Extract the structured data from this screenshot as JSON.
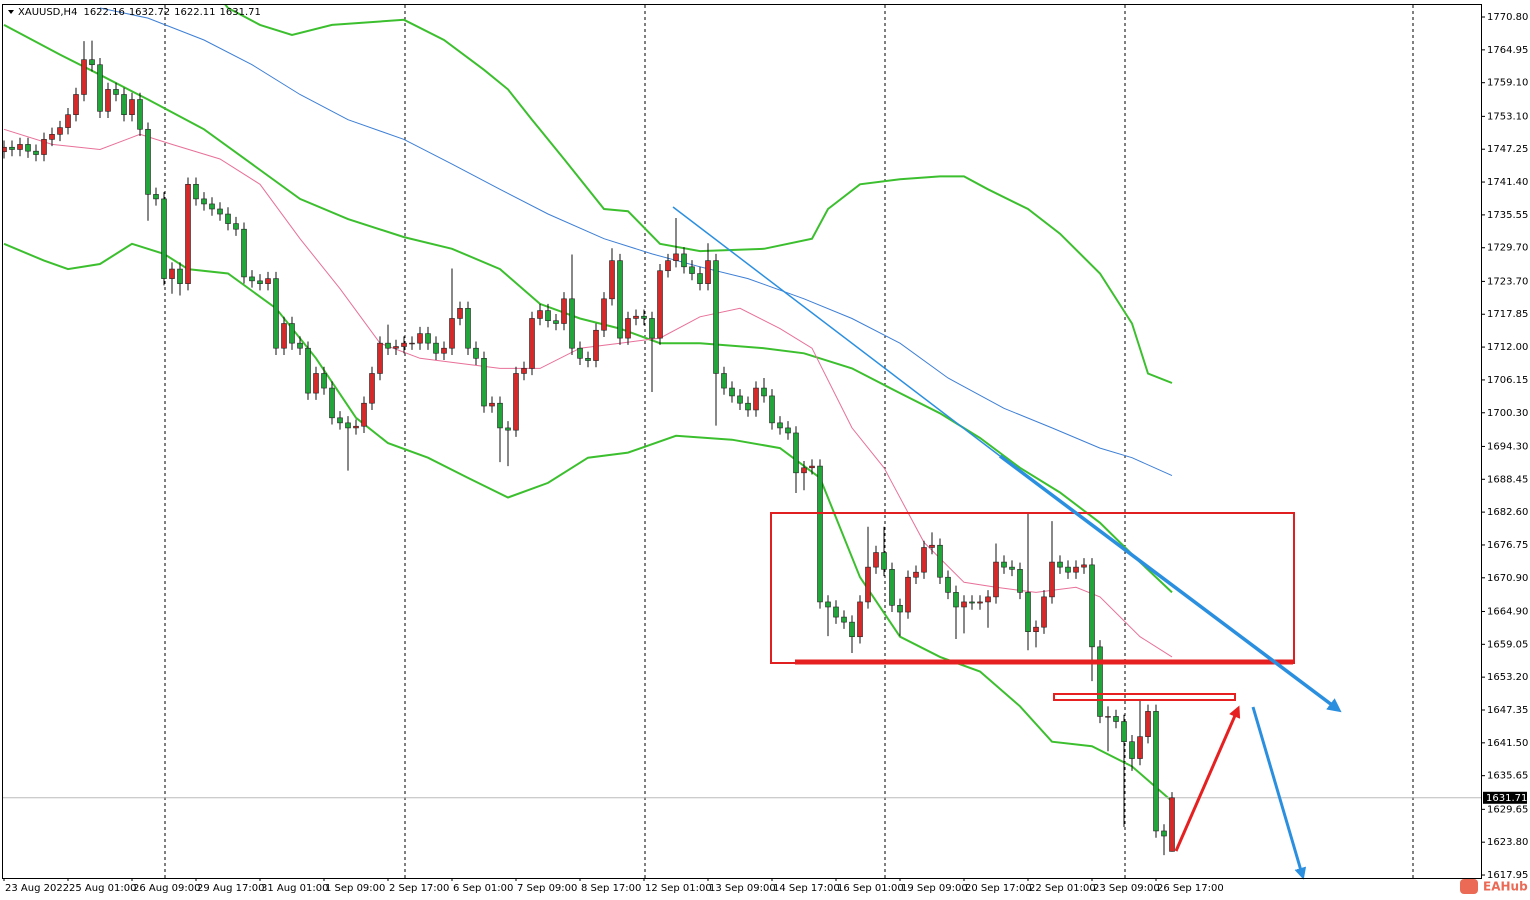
{
  "chart_data": {
    "type": "candlestick",
    "symbol": "XAUUSD,H4",
    "watermark": "EAHub",
    "categories": [
      "23 Aug 2022",
      null,
      null,
      null,
      null,
      null,
      null,
      null,
      "25 Aug 01:00",
      null,
      null,
      null,
      null,
      null,
      null,
      null,
      "26 Aug 09:00",
      null,
      null,
      null,
      null,
      null,
      null,
      null,
      "29 Aug 17:00",
      null,
      null,
      null,
      null,
      null,
      null,
      null,
      "31 Aug 01:00",
      null,
      null,
      null,
      null,
      null,
      null,
      null,
      "1 Sep 09:00",
      null,
      null,
      null,
      null,
      null,
      null,
      null,
      "2 Sep 17:00",
      null,
      null,
      null,
      null,
      null,
      null,
      null,
      "6 Sep 01:00",
      null,
      null,
      null,
      null,
      null,
      null,
      null,
      "7 Sep 09:00",
      null,
      null,
      null,
      null,
      null,
      null,
      null,
      "8 Sep 17:00",
      null,
      null,
      null,
      null,
      null,
      null,
      null,
      "12 Sep 01:00",
      null,
      null,
      null,
      null,
      null,
      null,
      null,
      "13 Sep 09:00",
      null,
      null,
      null,
      null,
      null,
      null,
      null,
      "14 Sep 17:00",
      null,
      null,
      null,
      null,
      null,
      null,
      null,
      "16 Sep 01:00",
      null,
      null,
      null,
      null,
      null,
      null,
      null,
      "19 Sep 09:00",
      null,
      null,
      null,
      null,
      null,
      null,
      null,
      "20 Sep 17:00",
      null,
      null,
      null,
      null,
      null,
      null,
      null,
      "22 Sep 01:00",
      null,
      null,
      null,
      null,
      null,
      null,
      null,
      "23 Sep 09:00",
      null,
      null,
      null,
      null,
      null,
      null,
      null,
      "26 Sep 17:00",
      null,
      null
    ],
    "open": [
      1746.8,
      1747.6,
      1747.2,
      1748.1,
      1746.9,
      1746.3,
      1749.0,
      1749.9,
      1751.1,
      1753.4,
      1757.0,
      1763.2,
      1762.3,
      1754.0,
      1757.9,
      1757.0,
      1753.4,
      1756.1,
      1750.8,
      1739.2,
      1738.4,
      1724.2,
      1725.9,
      1723.3,
      1741.0,
      1738.4,
      1737.5,
      1736.6,
      1735.7,
      1734.0,
      1733.0,
      1724.5,
      1723.8,
      1723.3,
      1724.2,
      1711.8,
      1716.2,
      1712.7,
      1711.8,
      1703.8,
      1707.3,
      1704.7,
      1699.4,
      1698.5,
      1697.6,
      1697.9,
      1702.0,
      1707.3,
      1712.7,
      1711.8,
      1712.1,
      1712.7,
      1712.7,
      1714.4,
      1712.7,
      1710.9,
      1711.8,
      1717.1,
      1718.9,
      1711.8,
      1710.0,
      1701.5,
      1702.0,
      1697.6,
      1697.2,
      1707.3,
      1708.2,
      1717.1,
      1718.5,
      1716.7,
      1716.2,
      1720.6,
      1711.8,
      1710.0,
      1709.6,
      1715.0,
      1720.6,
      1727.4,
      1713.6,
      1717.1,
      1717.5,
      1717.1,
      1713.6,
      1725.6,
      1727.4,
      1728.6,
      1726.3,
      1725.1,
      1723.3,
      1727.4,
      1707.3,
      1704.7,
      1703.3,
      1702.0,
      1700.8,
      1704.7,
      1703.3,
      1698.5,
      1697.6,
      1696.7,
      1689.6,
      1690.5,
      1690.8,
      1666.6,
      1665.7,
      1663.9,
      1663.0,
      1660.4,
      1666.6,
      1672.8,
      1675.4,
      1672.4,
      1666.0,
      1664.8,
      1671.0,
      1671.9,
      1676.3,
      1676.7,
      1671.0,
      1668.3,
      1665.7,
      1666.6,
      1666.4,
      1666.6,
      1667.5,
      1673.7,
      1672.8,
      1672.4,
      1668.3,
      1661.3,
      1662.1,
      1667.5,
      1673.7,
      1672.8,
      1671.9,
      1672.8,
      1673.2,
      1658.6,
      1646.2,
      1646.2,
      1645.3,
      1641.7,
      1638.7,
      1642.6,
      1647.1,
      1625.8,
      1622.16
    ],
    "high": [
      1748.8,
      1748.8,
      1749.3,
      1749.3,
      1748.1,
      1750.2,
      1751.1,
      1752.3,
      1754.6,
      1758.2,
      1766.5,
      1766.6,
      1763.5,
      1759.1,
      1759.1,
      1758.2,
      1757.3,
      1757.3,
      1752.0,
      1740.4,
      1739.6,
      1727.1,
      1727.1,
      1742.2,
      1742.2,
      1739.6,
      1738.7,
      1737.8,
      1736.9,
      1735.2,
      1734.2,
      1725.7,
      1725.0,
      1725.4,
      1725.4,
      1717.4,
      1717.4,
      1713.9,
      1713.0,
      1708.5,
      1708.5,
      1705.9,
      1700.6,
      1699.7,
      1699.1,
      1703.2,
      1708.5,
      1713.9,
      1716.0,
      1713.3,
      1713.9,
      1713.9,
      1715.6,
      1715.6,
      1713.9,
      1713.0,
      1726.0,
      1720.1,
      1720.1,
      1713.0,
      1711.2,
      1703.2,
      1703.2,
      1698.8,
      1708.5,
      1709.4,
      1718.3,
      1719.7,
      1719.7,
      1717.9,
      1721.8,
      1728.5,
      1713.0,
      1711.2,
      1716.2,
      1721.8,
      1729.6,
      1728.6,
      1718.3,
      1718.7,
      1718.7,
      1718.3,
      1726.8,
      1728.6,
      1735.0,
      1729.8,
      1727.5,
      1726.3,
      1730.5,
      1728.6,
      1708.5,
      1705.9,
      1704.5,
      1703.2,
      1705.9,
      1706.5,
      1704.5,
      1699.7,
      1698.8,
      1697.9,
      1691.7,
      1692.0,
      1692.0,
      1667.8,
      1666.9,
      1665.1,
      1664.2,
      1667.8,
      1680.0,
      1676.6,
      1680.0,
      1673.6,
      1667.2,
      1672.2,
      1673.1,
      1677.5,
      1679.0,
      1677.9,
      1672.2,
      1669.5,
      1667.8,
      1667.8,
      1667.8,
      1668.7,
      1677.0,
      1674.9,
      1674.0,
      1673.6,
      1682.5,
      1663.3,
      1668.7,
      1681.0,
      1674.9,
      1674.0,
      1674.0,
      1674.4,
      1674.4,
      1659.8,
      1648.0,
      1647.4,
      1646.5,
      1642.9,
      1649.0,
      1648.3,
      1648.3,
      1627.0,
      1632.72
    ],
    "low": [
      1745.6,
      1746.0,
      1746.0,
      1745.7,
      1745.1,
      1745.1,
      1747.8,
      1748.7,
      1749.9,
      1752.2,
      1755.8,
      1761.1,
      1752.8,
      1752.8,
      1755.8,
      1752.2,
      1752.2,
      1749.6,
      1734.5,
      1737.2,
      1723.0,
      1721.5,
      1721.2,
      1722.1,
      1737.2,
      1736.3,
      1735.4,
      1734.5,
      1732.8,
      1731.8,
      1723.3,
      1722.6,
      1722.1,
      1722.1,
      1710.6,
      1710.6,
      1711.5,
      1710.6,
      1702.6,
      1702.6,
      1703.5,
      1698.2,
      1697.3,
      1690.0,
      1696.4,
      1696.7,
      1700.8,
      1706.1,
      1710.6,
      1710.6,
      1710.9,
      1711.5,
      1711.5,
      1711.5,
      1709.7,
      1709.7,
      1710.6,
      1715.9,
      1710.6,
      1708.8,
      1700.3,
      1700.3,
      1691.5,
      1690.8,
      1696.0,
      1706.1,
      1707.0,
      1715.9,
      1715.5,
      1715.0,
      1715.0,
      1710.6,
      1708.8,
      1708.4,
      1708.4,
      1713.8,
      1719.4,
      1712.4,
      1712.4,
      1715.9,
      1715.9,
      1704.0,
      1712.4,
      1724.4,
      1726.2,
      1725.1,
      1723.9,
      1722.1,
      1722.1,
      1698.0,
      1703.5,
      1702.1,
      1700.8,
      1699.6,
      1699.6,
      1702.1,
      1697.3,
      1696.4,
      1695.5,
      1686.0,
      1686.5,
      1689.3,
      1665.4,
      1660.5,
      1662.7,
      1661.8,
      1657.5,
      1659.2,
      1665.4,
      1671.6,
      1671.2,
      1664.8,
      1660.5,
      1663.6,
      1669.8,
      1670.7,
      1675.1,
      1669.8,
      1667.1,
      1660.0,
      1661.0,
      1665.2,
      1665.2,
      1662.0,
      1666.3,
      1671.6,
      1671.2,
      1667.1,
      1658.0,
      1658.5,
      1660.9,
      1666.3,
      1671.6,
      1670.7,
      1670.7,
      1671.6,
      1652.5,
      1645.0,
      1640.0,
      1644.1,
      1626.5,
      1636.5,
      1637.5,
      1641.4,
      1624.6,
      1621.5,
      1622.11
    ],
    "close": [
      1747.6,
      1747.2,
      1748.1,
      1746.9,
      1746.3,
      1749.0,
      1749.9,
      1751.1,
      1753.4,
      1757.0,
      1763.2,
      1762.3,
      1754.0,
      1757.9,
      1757.0,
      1753.4,
      1756.1,
      1750.8,
      1739.2,
      1738.4,
      1724.2,
      1725.9,
      1723.3,
      1741.0,
      1738.4,
      1737.5,
      1736.6,
      1735.7,
      1734.0,
      1733.0,
      1724.5,
      1723.8,
      1723.3,
      1724.2,
      1711.8,
      1716.2,
      1712.7,
      1711.8,
      1703.8,
      1707.3,
      1704.7,
      1699.4,
      1698.5,
      1697.6,
      1697.9,
      1702.0,
      1707.3,
      1712.7,
      1711.8,
      1712.1,
      1712.7,
      1712.7,
      1714.4,
      1712.7,
      1710.9,
      1711.8,
      1717.1,
      1718.9,
      1711.8,
      1710.0,
      1701.5,
      1702.0,
      1697.6,
      1697.2,
      1707.3,
      1708.2,
      1717.1,
      1718.5,
      1716.7,
      1716.2,
      1720.6,
      1711.8,
      1710.0,
      1709.6,
      1715.0,
      1720.6,
      1727.4,
      1713.6,
      1717.1,
      1717.5,
      1717.1,
      1713.6,
      1725.6,
      1727.4,
      1728.6,
      1726.3,
      1725.1,
      1723.3,
      1727.4,
      1707.3,
      1704.7,
      1703.3,
      1702.0,
      1700.8,
      1704.7,
      1703.3,
      1698.5,
      1697.6,
      1696.7,
      1689.6,
      1690.5,
      1690.8,
      1666.6,
      1665.7,
      1663.9,
      1663.0,
      1660.4,
      1666.6,
      1672.8,
      1675.4,
      1672.4,
      1666.0,
      1664.8,
      1671.0,
      1671.9,
      1676.3,
      1676.7,
      1671.0,
      1668.3,
      1665.7,
      1666.6,
      1666.4,
      1666.6,
      1667.5,
      1673.7,
      1672.8,
      1672.4,
      1668.3,
      1661.3,
      1662.1,
      1667.5,
      1673.7,
      1672.8,
      1671.9,
      1672.8,
      1673.2,
      1658.6,
      1646.2,
      1646.2,
      1645.3,
      1641.7,
      1638.7,
      1642.6,
      1647.1,
      1625.8,
      1624.9,
      1631.71
    ],
    "up_color": "#d42a2a",
    "down_color": "#22a53a",
    "overlays": [
      {
        "type": "line",
        "color": "#3cbf2e",
        "x": [
          26,
          28,
          32,
          36,
          41,
          50,
          55,
          60,
          63,
          66,
          70,
          75,
          78,
          82,
          87,
          95,
          101,
          103,
          107,
          112,
          117,
          120,
          123,
          128,
          132,
          137,
          141,
          143,
          146
        ],
        "values": [
          1776.0,
          1772.4,
          1769.4,
          1767.6,
          1769.4,
          1770.3,
          1766.7,
          1761.4,
          1757.9,
          1752.5,
          1745.5,
          1736.6,
          1736.2,
          1730.4,
          1729.1,
          1729.5,
          1731.3,
          1736.6,
          1741.0,
          1741.9,
          1742.4,
          1742.4,
          1740.1,
          1736.6,
          1732.2,
          1725.1,
          1716.2,
          1707.3,
          1705.6
        ]
      },
      {
        "type": "line",
        "color": "#3cbf2e",
        "x": [
          0,
          7,
          12,
          18,
          25,
          31,
          37,
          43,
          50,
          56,
          62,
          67,
          72,
          77,
          82,
          87,
          95,
          100,
          106,
          112,
          117,
          122,
          127,
          132,
          137,
          142,
          146
        ],
        "values": [
          1769.4,
          1764.1,
          1760.5,
          1756.1,
          1750.8,
          1744.6,
          1738.4,
          1734.8,
          1731.6,
          1729.5,
          1725.9,
          1719.7,
          1717.1,
          1715.3,
          1712.7,
          1712.7,
          1711.8,
          1710.9,
          1708.2,
          1703.8,
          1700.2,
          1695.8,
          1690.5,
          1686.1,
          1680.7,
          1673.7,
          1668.3
        ]
      },
      {
        "type": "line",
        "color": "#3cbf2e",
        "x": [
          0,
          5,
          8,
          12,
          16,
          20,
          23,
          28,
          34,
          39,
          44,
          48,
          53,
          58,
          63,
          68,
          73,
          78,
          84,
          91,
          97,
          102,
          107,
          112,
          117,
          122,
          127,
          131,
          136,
          141,
          146
        ],
        "values": [
          1730.4,
          1727.4,
          1725.9,
          1726.8,
          1730.4,
          1728.6,
          1725.9,
          1725.1,
          1718.9,
          1710.0,
          1699.4,
          1694.9,
          1692.3,
          1688.7,
          1685.2,
          1687.8,
          1692.3,
          1693.2,
          1696.2,
          1695.5,
          1694.0,
          1688.7,
          1671.0,
          1660.4,
          1656.8,
          1654.2,
          1648.0,
          1641.7,
          1640.9,
          1637.3,
          1631.1
        ]
      },
      {
        "type": "line",
        "color": "#3d7fd6",
        "x": [
          12,
          18,
          25,
          31,
          37,
          43,
          50,
          56,
          62,
          68,
          75,
          81,
          87,
          93,
          100,
          106,
          112,
          118,
          125,
          131,
          137,
          141,
          146
        ],
        "values": [
          1772.4,
          1770.6,
          1766.7,
          1762.3,
          1757.0,
          1752.5,
          1749.0,
          1744.6,
          1740.1,
          1735.7,
          1731.3,
          1728.6,
          1726.3,
          1724.2,
          1720.6,
          1717.1,
          1712.7,
          1706.5,
          1701.1,
          1697.6,
          1694.0,
          1692.3,
          1689.1
        ]
      },
      {
        "type": "line",
        "color": "#e8709a",
        "x": [
          0,
          6,
          12,
          17,
          21,
          27,
          32,
          37,
          42,
          47,
          52,
          57,
          62,
          67,
          72,
          77,
          82,
          87,
          92,
          97,
          101,
          106,
          110,
          115,
          120,
          124,
          129,
          134,
          137,
          142,
          146
        ],
        "values": [
          1750.8,
          1748.1,
          1747.2,
          1749.9,
          1748.1,
          1745.5,
          1741.0,
          1731.3,
          1722.4,
          1712.7,
          1710.0,
          1709.1,
          1708.2,
          1708.2,
          1711.8,
          1712.7,
          1713.6,
          1717.4,
          1718.9,
          1715.3,
          1711.8,
          1697.6,
          1690.5,
          1677.2,
          1670.1,
          1669.2,
          1668.3,
          1669.2,
          1667.5,
          1660.4,
          1656.8
        ]
      }
    ],
    "ylim": [
      1617.42,
      1772.94
    ],
    "yticks": [
      {
        "value": 1770.8,
        "label": "1770.80"
      },
      1764.95,
      {
        "value": 1759.1,
        "label": "1759.10"
      },
      {
        "value": 1753.1,
        "label": "1753.10"
      },
      1747.25,
      {
        "value": 1741.4,
        "label": "1741.40"
      },
      1735.55,
      {
        "value": 1729.7,
        "label": "1729.70"
      },
      {
        "value": 1723.7,
        "label": "1723.70"
      },
      1717.85,
      {
        "value": 1712.0,
        "label": "1712.00"
      },
      1706.15,
      {
        "value": 1700.3,
        "label": "1700.30"
      },
      {
        "value": 1694.3,
        "label": "1694.30"
      },
      1688.45,
      {
        "value": 1682.6,
        "label": "1682.60"
      },
      1676.75,
      {
        "value": 1670.9,
        "label": "1670.90"
      },
      {
        "value": 1664.9,
        "label": "1664.90"
      },
      1659.05,
      {
        "value": 1653.2,
        "label": "1653.20"
      },
      1647.35,
      {
        "value": 1641.5,
        "label": "1641.50"
      },
      1635.65,
      1629.65,
      {
        "value": 1623.8,
        "label": "1623.80"
      },
      1617.95
    ],
    "grid": false
  }
}
